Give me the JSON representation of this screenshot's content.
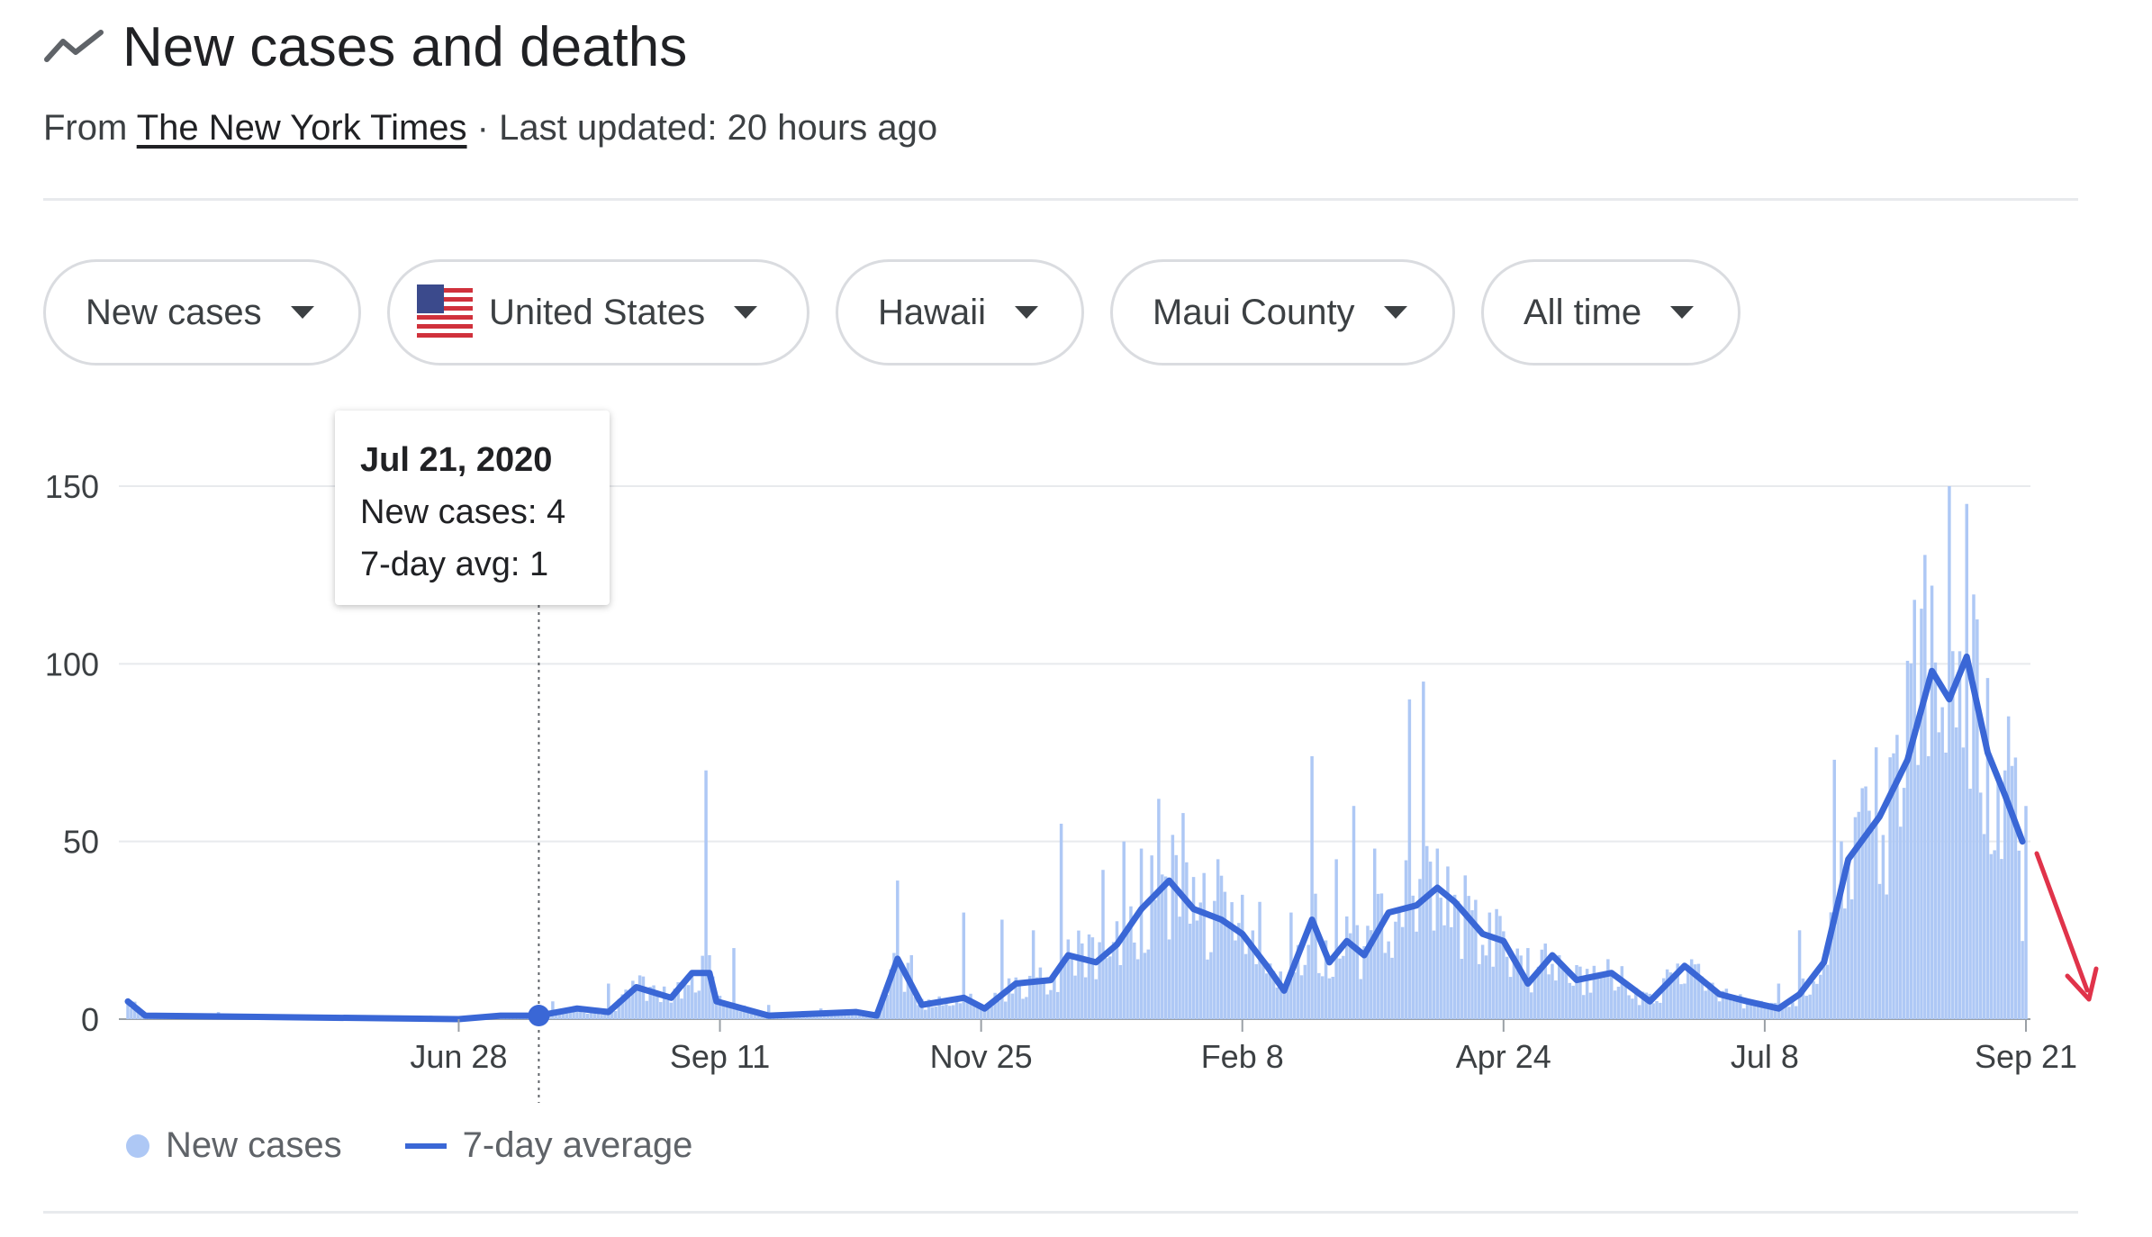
{
  "header": {
    "title": "New cases and deaths",
    "from_label": "From",
    "source": "The New York Times",
    "updated": "· Last updated: 20 hours ago"
  },
  "filters": [
    {
      "label": "New cases"
    },
    {
      "label": "United States",
      "icon": "us-flag-icon"
    },
    {
      "label": "Hawaii"
    },
    {
      "label": "Maui County"
    },
    {
      "label": "All time"
    }
  ],
  "tooltip": {
    "date": "Jul 21, 2020",
    "cases": "New cases: 4",
    "avg": "7-day avg: 1"
  },
  "legend": {
    "cases_label": "New cases",
    "avg_label": "7-day average"
  },
  "colors": {
    "bars": "#aec8f5",
    "average": "#3a67d6",
    "annotation": "#e0334a"
  },
  "chart_data": {
    "type": "bar",
    "title": "New cases and deaths",
    "x_ticks": [
      "Jun 28",
      "Sep 11",
      "Nov 25",
      "Feb 8",
      "Apr 24",
      "Jul 8",
      "Sep 21"
    ],
    "y_ticks": [
      0,
      50,
      100,
      150
    ],
    "ylim": [
      0,
      150
    ],
    "grid": true,
    "legend_position": "bottom-left",
    "highlight": {
      "date": "Jul 21, 2020",
      "new_cases": 4,
      "avg": 1
    },
    "series": [
      {
        "name": "New cases",
        "type": "bar",
        "points": [
          [
            "2020-03-25",
            5
          ],
          [
            "2020-04-20",
            2
          ],
          [
            "2020-06-20",
            1
          ],
          [
            "2020-07-25",
            5
          ],
          [
            "2020-08-10",
            10
          ],
          [
            "2020-08-20",
            12
          ],
          [
            "2020-09-05",
            8
          ],
          [
            "2020-09-07",
            70
          ],
          [
            "2020-09-09",
            12
          ],
          [
            "2020-09-15",
            20
          ],
          [
            "2020-09-25",
            4
          ],
          [
            "2020-10-10",
            3
          ],
          [
            "2020-10-25",
            2
          ],
          [
            "2020-11-01",
            39
          ],
          [
            "2020-11-05",
            18
          ],
          [
            "2020-11-20",
            30
          ],
          [
            "2020-12-01",
            28
          ],
          [
            "2020-12-10",
            25
          ],
          [
            "2020-12-18",
            55
          ],
          [
            "2020-12-30",
            42
          ],
          [
            "2021-01-05",
            50
          ],
          [
            "2021-01-10",
            48
          ],
          [
            "2021-01-15",
            62
          ],
          [
            "2021-01-22",
            58
          ],
          [
            "2021-01-25",
            40
          ],
          [
            "2021-02-01",
            45
          ],
          [
            "2021-02-08",
            35
          ],
          [
            "2021-02-13",
            33
          ],
          [
            "2021-02-22",
            30
          ],
          [
            "2021-02-28",
            74
          ],
          [
            "2021-03-07",
            45
          ],
          [
            "2021-03-12",
            60
          ],
          [
            "2021-03-18",
            48
          ],
          [
            "2021-03-28",
            90
          ],
          [
            "2021-04-01",
            95
          ],
          [
            "2021-04-05",
            48
          ],
          [
            "2021-04-10",
            35
          ],
          [
            "2021-04-20",
            30
          ],
          [
            "2021-05-01",
            20
          ],
          [
            "2021-05-10",
            18
          ],
          [
            "2021-05-20",
            15
          ],
          [
            "2021-06-10",
            14
          ],
          [
            "2021-06-20",
            12
          ],
          [
            "2021-07-01",
            7
          ],
          [
            "2021-07-08",
            4
          ],
          [
            "2021-07-12",
            10
          ],
          [
            "2021-07-18",
            25
          ],
          [
            "2021-07-28",
            73
          ],
          [
            "2021-08-05",
            65
          ],
          [
            "2021-08-15",
            80
          ],
          [
            "2021-08-20",
            118
          ],
          [
            "2021-08-25",
            122
          ],
          [
            "2021-08-30",
            150
          ],
          [
            "2021-09-04",
            145
          ],
          [
            "2021-09-10",
            96
          ],
          [
            "2021-09-15",
            70
          ],
          [
            "2021-09-20",
            22
          ]
        ]
      },
      {
        "name": "7-day average",
        "type": "line",
        "points": [
          [
            "2020-03-25",
            5
          ],
          [
            "2020-03-30",
            1
          ],
          [
            "2020-06-28",
            0
          ],
          [
            "2020-07-10",
            1
          ],
          [
            "2020-07-21",
            1
          ],
          [
            "2020-08-01",
            3
          ],
          [
            "2020-08-10",
            2
          ],
          [
            "2020-08-18",
            9
          ],
          [
            "2020-08-28",
            6
          ],
          [
            "2020-09-03",
            13
          ],
          [
            "2020-09-08",
            13
          ],
          [
            "2020-09-10",
            5
          ],
          [
            "2020-09-25",
            1
          ],
          [
            "2020-10-20",
            2
          ],
          [
            "2020-10-26",
            1
          ],
          [
            "2020-11-01",
            17
          ],
          [
            "2020-11-08",
            4
          ],
          [
            "2020-11-20",
            6
          ],
          [
            "2020-11-26",
            3
          ],
          [
            "2020-12-05",
            10
          ],
          [
            "2020-12-15",
            11
          ],
          [
            "2020-12-20",
            18
          ],
          [
            "2020-12-28",
            16
          ],
          [
            "2021-01-03",
            21
          ],
          [
            "2021-01-10",
            31
          ],
          [
            "2021-01-18",
            39
          ],
          [
            "2021-01-25",
            31
          ],
          [
            "2021-02-02",
            28
          ],
          [
            "2021-02-08",
            24
          ],
          [
            "2021-02-15",
            15
          ],
          [
            "2021-02-20",
            8
          ],
          [
            "2021-02-28",
            28
          ],
          [
            "2021-03-05",
            16
          ],
          [
            "2021-03-10",
            22
          ],
          [
            "2021-03-15",
            18
          ],
          [
            "2021-03-22",
            30
          ],
          [
            "2021-03-30",
            32
          ],
          [
            "2021-04-05",
            37
          ],
          [
            "2021-04-10",
            33
          ],
          [
            "2021-04-18",
            24
          ],
          [
            "2021-04-24",
            22
          ],
          [
            "2021-05-01",
            10
          ],
          [
            "2021-05-08",
            18
          ],
          [
            "2021-05-15",
            11
          ],
          [
            "2021-05-25",
            13
          ],
          [
            "2021-06-05",
            5
          ],
          [
            "2021-06-15",
            15
          ],
          [
            "2021-06-25",
            7
          ],
          [
            "2021-07-03",
            5
          ],
          [
            "2021-07-12",
            3
          ],
          [
            "2021-07-18",
            7
          ],
          [
            "2021-07-25",
            16
          ],
          [
            "2021-08-01",
            45
          ],
          [
            "2021-08-10",
            57
          ],
          [
            "2021-08-18",
            73
          ],
          [
            "2021-08-25",
            98
          ],
          [
            "2021-08-30",
            90
          ],
          [
            "2021-09-04",
            102
          ],
          [
            "2021-09-10",
            75
          ],
          [
            "2021-09-15",
            63
          ],
          [
            "2021-09-20",
            50
          ]
        ]
      }
    ]
  }
}
